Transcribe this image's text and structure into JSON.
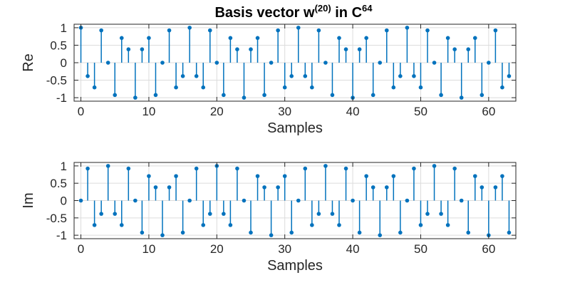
{
  "title": {
    "main": "Basis vector w",
    "sup1": "(20)",
    "mid": " in C",
    "sup2": "64"
  },
  "chart_data": [
    {
      "type": "stem",
      "name": "re",
      "ylabel": "Re",
      "xlabel": "Samples",
      "xlim": [
        -1,
        64
      ],
      "ylim": [
        -1.1,
        1.1
      ],
      "xticks": [
        0,
        10,
        20,
        30,
        40,
        50,
        60
      ],
      "yticks": [
        1,
        0.5,
        0,
        -0.5,
        -1
      ],
      "ytick_labels": [
        "1",
        "0.5",
        "0",
        "-0.5",
        "-1"
      ],
      "grid": true,
      "color": "#0072bd",
      "x": [
        0,
        1,
        2,
        3,
        4,
        5,
        6,
        7,
        8,
        9,
        10,
        11,
        12,
        13,
        14,
        15,
        16,
        17,
        18,
        19,
        20,
        21,
        22,
        23,
        24,
        25,
        26,
        27,
        28,
        29,
        30,
        31,
        32,
        33,
        34,
        35,
        36,
        37,
        38,
        39,
        40,
        41,
        42,
        43,
        44,
        45,
        46,
        47,
        48,
        49,
        50,
        51,
        52,
        53,
        54,
        55,
        56,
        57,
        58,
        59,
        60,
        61,
        62,
        63
      ],
      "y": [
        1,
        -0.383,
        -0.707,
        0.924,
        0,
        -0.924,
        0.707,
        0.383,
        -1,
        0.383,
        0.707,
        -0.924,
        0,
        0.924,
        -0.707,
        -0.383,
        1,
        -0.383,
        -0.707,
        0.924,
        0,
        -0.924,
        0.707,
        0.383,
        -1,
        0.383,
        0.707,
        -0.924,
        0,
        0.924,
        -0.707,
        -0.383,
        1,
        -0.383,
        -0.707,
        0.924,
        0,
        -0.924,
        0.707,
        0.383,
        -1,
        0.383,
        0.707,
        -0.924,
        0,
        0.924,
        -0.707,
        -0.383,
        1,
        -0.383,
        -0.707,
        0.924,
        0,
        -0.924,
        0.707,
        0.383,
        -1,
        0.383,
        0.707,
        -0.924,
        0,
        0.924,
        -0.707,
        -0.383
      ]
    },
    {
      "type": "stem",
      "name": "im",
      "ylabel": "Im",
      "xlabel": "Samples",
      "xlim": [
        -1,
        64
      ],
      "ylim": [
        -1.1,
        1.1
      ],
      "xticks": [
        0,
        10,
        20,
        30,
        40,
        50,
        60
      ],
      "yticks": [
        1,
        0.5,
        0,
        -0.5,
        -1
      ],
      "ytick_labels": [
        "1",
        "0.5",
        "0",
        "-0.5",
        "-1"
      ],
      "grid": true,
      "color": "#0072bd",
      "x": [
        0,
        1,
        2,
        3,
        4,
        5,
        6,
        7,
        8,
        9,
        10,
        11,
        12,
        13,
        14,
        15,
        16,
        17,
        18,
        19,
        20,
        21,
        22,
        23,
        24,
        25,
        26,
        27,
        28,
        29,
        30,
        31,
        32,
        33,
        34,
        35,
        36,
        37,
        38,
        39,
        40,
        41,
        42,
        43,
        44,
        45,
        46,
        47,
        48,
        49,
        50,
        51,
        52,
        53,
        54,
        55,
        56,
        57,
        58,
        59,
        60,
        61,
        62,
        63
      ],
      "y": [
        0,
        0.924,
        -0.707,
        -0.383,
        1,
        -0.383,
        -0.707,
        0.924,
        0,
        -0.924,
        0.707,
        0.383,
        -1,
        0.383,
        0.707,
        -0.924,
        0,
        0.924,
        -0.707,
        -0.383,
        1,
        -0.383,
        -0.707,
        0.924,
        0,
        -0.924,
        0.707,
        0.383,
        -1,
        0.383,
        0.707,
        -0.924,
        0,
        0.924,
        -0.707,
        -0.383,
        1,
        -0.383,
        -0.707,
        0.924,
        0,
        -0.924,
        0.707,
        0.383,
        -1,
        0.383,
        0.707,
        -0.924,
        0,
        0.924,
        -0.707,
        -0.383,
        1,
        -0.383,
        -0.707,
        0.924,
        0,
        -0.924,
        0.707,
        0.383,
        -1,
        0.383,
        0.707,
        -0.924
      ]
    }
  ]
}
